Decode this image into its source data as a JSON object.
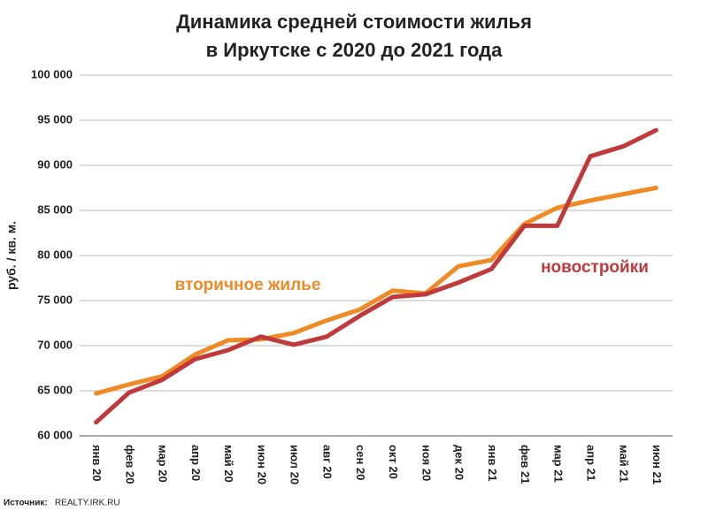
{
  "chart_data": {
    "type": "line",
    "title": [
      "Динамика  средней стоимости жилья",
      "в Иркутске с 2020 до 2021 года"
    ],
    "y_label": "руб. / кв. м.",
    "source": {
      "label": "Источник:",
      "text": "REALTY.IRK.RU"
    },
    "categories": [
      "янв 20",
      "фев 20",
      "мар 20",
      "апр 20",
      "май 20",
      "июн 20",
      "июл 20",
      "авг 20",
      "сен 20",
      "окт 20",
      "ноя 20",
      "дек 20",
      "янв 21",
      "фев 21",
      "мар 21",
      "апр 21",
      "май 21",
      "июн 21"
    ],
    "series": [
      {
        "name": "вторичное жилье",
        "color": "#f08a24",
        "values": [
          64700,
          65700,
          66600,
          69000,
          70600,
          70700,
          71400,
          72800,
          74000,
          76100,
          75800,
          78800,
          79500,
          83500,
          85300,
          86100,
          86800,
          87500
        ]
      },
      {
        "name": "новостройки",
        "color": "#c0393b",
        "values": [
          61500,
          64800,
          66200,
          68500,
          69500,
          71000,
          70100,
          71000,
          73300,
          75400,
          75700,
          77000,
          78500,
          83300,
          83300,
          91000,
          92100,
          93900
        ]
      }
    ],
    "ylim": [
      60000,
      100000
    ],
    "yticks": [
      {
        "value": 60000,
        "label": "60 000"
      },
      {
        "value": 65000,
        "label": "65 000"
      },
      {
        "value": 70000,
        "label": "70 000"
      },
      {
        "value": 75000,
        "label": "75 000"
      },
      {
        "value": 80000,
        "label": "80 000"
      },
      {
        "value": 85000,
        "label": "85 000"
      },
      {
        "value": 90000,
        "label": "90 000"
      },
      {
        "value": 95000,
        "label": "95 000"
      },
      {
        "value": 100000,
        "label": "100 000"
      }
    ],
    "grid": true
  }
}
